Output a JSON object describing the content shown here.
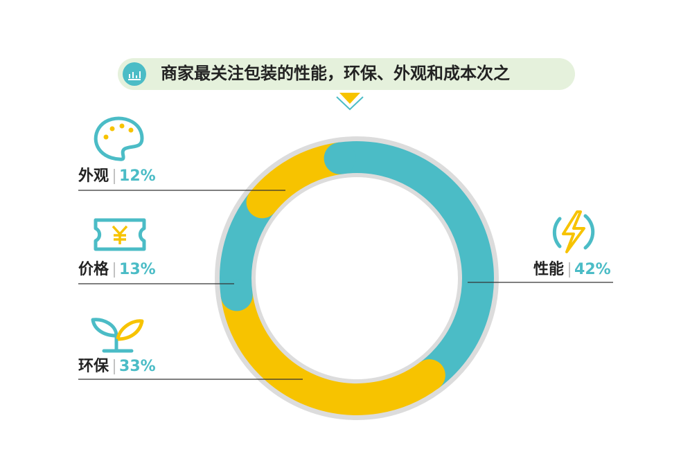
{
  "chart_data": {
    "type": "pie",
    "title": "商家最关注包装的性能，环保、外观和成本次之",
    "categories": [
      "性能",
      "环保",
      "价格",
      "外观"
    ],
    "values": [
      42,
      33,
      13,
      12
    ],
    "value_labels": [
      "42%",
      "33%",
      "13%",
      "12%"
    ],
    "colors": [
      "#4bbcc6",
      "#f7c300",
      "#4bbcc6",
      "#f7c300"
    ]
  }
}
